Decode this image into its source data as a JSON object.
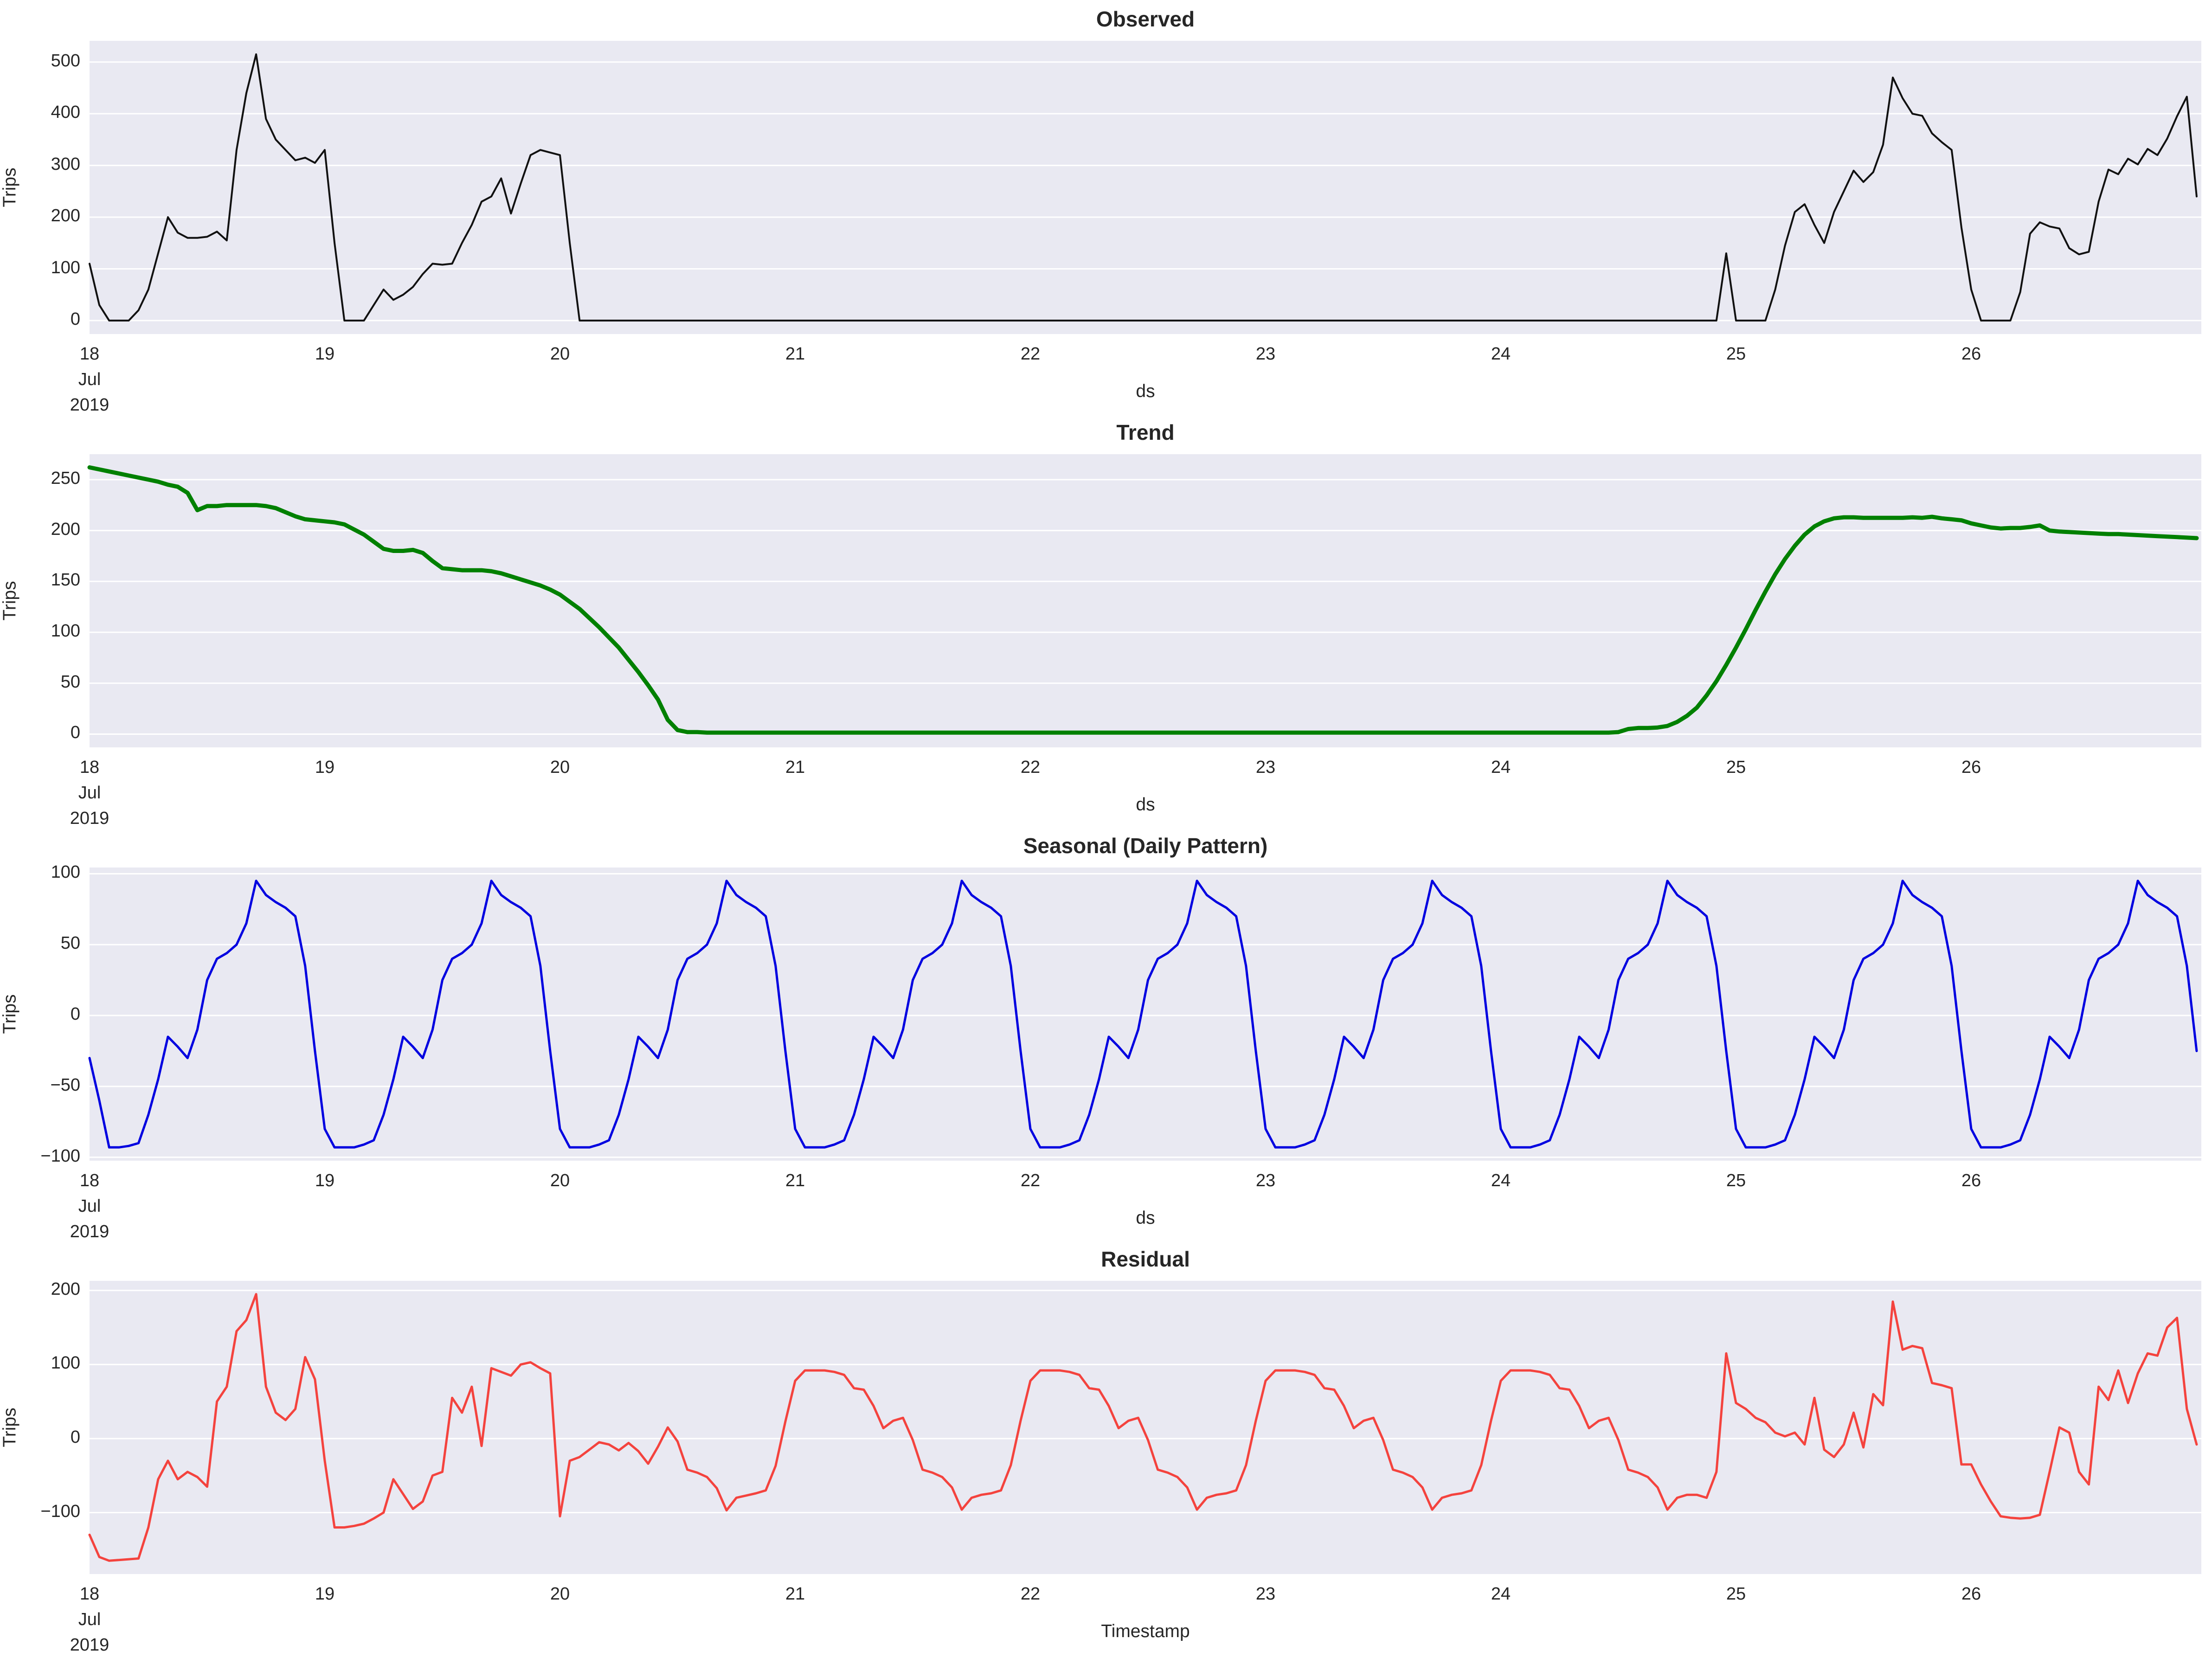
{
  "figure": {
    "background": "#ffffff",
    "axes_background": "#e9e9f2",
    "grid_color": "#ffffff",
    "text_color": "#262626",
    "x_first_tick_sublabels": [
      "Jul",
      "2019"
    ],
    "x_tick_labels": [
      "18",
      "19",
      "20",
      "21",
      "22",
      "23",
      "24",
      "25",
      "26"
    ]
  },
  "chart_data": [
    {
      "type": "line",
      "title": "Observed",
      "ylabel": "Trips",
      "xlabel": "ds",
      "color": "#111111",
      "line_width": 4,
      "x_start_day": 18,
      "x_step_days": 0.0416667,
      "x_tick_days": [
        18,
        19,
        20,
        21,
        22,
        23,
        24,
        25,
        26
      ],
      "yticks": [
        0,
        100,
        200,
        300,
        400,
        500
      ],
      "ylim": [
        -26,
        541
      ],
      "xlim_days": [
        18,
        26.98
      ],
      "grid": true,
      "legend": "none",
      "values": [
        110,
        30,
        0,
        0,
        0,
        20,
        60,
        130,
        200,
        170,
        160,
        160,
        162,
        172,
        155,
        330,
        440,
        515,
        390,
        350,
        330,
        310,
        315,
        305,
        330,
        150,
        0,
        0,
        0,
        30,
        60,
        40,
        50,
        65,
        90,
        110,
        108,
        110,
        150,
        185,
        230,
        240,
        275,
        207,
        265,
        320,
        330,
        325,
        320,
        150,
        0,
        0,
        0,
        0,
        0,
        0,
        0,
        0,
        0,
        0,
        0,
        0,
        0,
        0,
        0,
        0,
        0,
        0,
        0,
        0,
        0,
        0,
        0,
        0,
        0,
        0,
        0,
        0,
        0,
        0,
        0,
        0,
        0,
        0,
        0,
        0,
        0,
        0,
        0,
        0,
        0,
        0,
        0,
        0,
        0,
        0,
        0,
        0,
        0,
        0,
        0,
        0,
        0,
        0,
        0,
        0,
        0,
        0,
        0,
        0,
        0,
        0,
        0,
        0,
        0,
        0,
        0,
        0,
        0,
        0,
        0,
        0,
        0,
        0,
        0,
        0,
        0,
        0,
        0,
        0,
        0,
        0,
        0,
        0,
        0,
        0,
        0,
        0,
        0,
        0,
        0,
        0,
        0,
        0,
        0,
        0,
        0,
        0,
        0,
        0,
        0,
        0,
        0,
        0,
        0,
        0,
        0,
        0,
        0,
        0,
        0,
        0,
        0,
        0,
        0,
        0,
        0,
        130,
        0,
        0,
        0,
        0,
        60,
        145,
        210,
        225,
        185,
        150,
        210,
        250,
        290,
        268,
        287,
        340,
        470,
        430,
        400,
        396,
        362,
        345,
        330,
        180,
        60,
        0,
        0,
        0,
        0,
        55,
        168,
        190,
        182,
        178,
        140,
        128,
        133,
        230,
        292,
        283,
        313,
        302,
        332,
        320,
        352,
        395,
        433,
        240
      ]
    },
    {
      "type": "line",
      "title": "Trend",
      "ylabel": "Trips",
      "xlabel": "ds",
      "color": "#008000",
      "line_width": 9,
      "x_start_day": 18,
      "x_step_days": 0.0416667,
      "x_tick_days": [
        18,
        19,
        20,
        21,
        22,
        23,
        24,
        25,
        26
      ],
      "yticks": [
        0,
        50,
        100,
        150,
        200,
        250
      ],
      "ylim": [
        -13,
        275
      ],
      "xlim_days": [
        18,
        26.98
      ],
      "grid": true,
      "legend": "none",
      "values": [
        262,
        260,
        258,
        256,
        254,
        252,
        250,
        248,
        245,
        243,
        237,
        220,
        224,
        224,
        225,
        225,
        225,
        225,
        224,
        222,
        218,
        214,
        211,
        210,
        209,
        208,
        206,
        201,
        196,
        189,
        182,
        180,
        180,
        181,
        178,
        170,
        163,
        162,
        161,
        161,
        161,
        160,
        158,
        155,
        152,
        149,
        146,
        142,
        137,
        130,
        123,
        114,
        105,
        95,
        85,
        73,
        61,
        48,
        34,
        14,
        4,
        2,
        2,
        1.5,
        1.5,
        1.5,
        1.5,
        1.5,
        1.5,
        1.5,
        1.5,
        1.5,
        1.5,
        1.5,
        1.5,
        1.5,
        1.5,
        1.5,
        1.5,
        1.5,
        1.5,
        1.5,
        1.5,
        1.5,
        1.5,
        1.5,
        1.5,
        1.5,
        1.5,
        1.5,
        1.5,
        1.5,
        1.5,
        1.5,
        1.5,
        1.5,
        1.5,
        1.5,
        1.5,
        1.5,
        1.5,
        1.5,
        1.5,
        1.5,
        1.5,
        1.5,
        1.5,
        1.5,
        1.5,
        1.5,
        1.5,
        1.5,
        1.5,
        1.5,
        1.5,
        1.5,
        1.5,
        1.5,
        1.5,
        1.5,
        1.5,
        1.5,
        1.5,
        1.5,
        1.5,
        1.5,
        1.5,
        1.5,
        1.5,
        1.5,
        1.5,
        1.5,
        1.5,
        1.5,
        1.5,
        1.5,
        1.5,
        1.5,
        1.5,
        1.5,
        1.5,
        1.5,
        1.5,
        1.5,
        1.5,
        1.5,
        1.5,
        1.5,
        1.5,
        1.5,
        1.5,
        1.5,
        1.5,
        1.5,
        1.5,
        1.5,
        2,
        5,
        6,
        6,
        6.5,
        8,
        12,
        18,
        26,
        38,
        52,
        68,
        85,
        103,
        122,
        140,
        157,
        172,
        185,
        196,
        204,
        209,
        212,
        213,
        213,
        212.5,
        212.5,
        212.5,
        212.5,
        212.5,
        213,
        212.5,
        213.5,
        212,
        211,
        210,
        207,
        205,
        203,
        202,
        202.5,
        202.5,
        203.5,
        205,
        200,
        199,
        198.5,
        198,
        197.5,
        197,
        196.5,
        196.5,
        196,
        195.5,
        195,
        194.5,
        194,
        193.5,
        193,
        192.5
      ]
    },
    {
      "type": "line",
      "title": "Seasonal (Daily Pattern)",
      "ylabel": "Trips",
      "xlabel": "ds",
      "color": "#0000e0",
      "line_width": 5,
      "x_start_day": 18,
      "x_step_days": 0.0416667,
      "x_tick_days": [
        18,
        19,
        20,
        21,
        22,
        23,
        24,
        25,
        26
      ],
      "yticks": [
        -100,
        -50,
        0,
        50,
        100
      ],
      "ylim": [
        -102.4,
        104.4
      ],
      "xlim_days": [
        18,
        26.98
      ],
      "grid": true,
      "legend": "none",
      "values": [
        -30,
        -60,
        -93,
        -93,
        -92,
        -90,
        -70,
        -45,
        -15,
        -22,
        -30,
        -10,
        25,
        40,
        44,
        50,
        65,
        95,
        85,
        80,
        76,
        70,
        35,
        -25,
        -80,
        -93,
        -93,
        -93,
        -91,
        -88,
        -70,
        -45,
        -15,
        -22,
        -30,
        -10,
        25,
        40,
        44,
        50,
        65,
        95,
        85,
        80,
        76,
        70,
        35,
        -25,
        -80,
        -93,
        -93,
        -93,
        -91,
        -88,
        -70,
        -45,
        -15,
        -22,
        -30,
        -10,
        25,
        40,
        44,
        50,
        65,
        95,
        85,
        80,
        76,
        70,
        35,
        -25,
        -80,
        -93,
        -93,
        -93,
        -91,
        -88,
        -70,
        -45,
        -15,
        -22,
        -30,
        -10,
        25,
        40,
        44,
        50,
        65,
        95,
        85,
        80,
        76,
        70,
        35,
        -25,
        -80,
        -93,
        -93,
        -93,
        -91,
        -88,
        -70,
        -45,
        -15,
        -22,
        -30,
        -10,
        25,
        40,
        44,
        50,
        65,
        95,
        85,
        80,
        76,
        70,
        35,
        -25,
        -80,
        -93,
        -93,
        -93,
        -91,
        -88,
        -70,
        -45,
        -15,
        -22,
        -30,
        -10,
        25,
        40,
        44,
        50,
        65,
        95,
        85,
        80,
        76,
        70,
        35,
        -25,
        -80,
        -93,
        -93,
        -93,
        -91,
        -88,
        -70,
        -45,
        -15,
        -22,
        -30,
        -10,
        25,
        40,
        44,
        50,
        65,
        95,
        85,
        80,
        76,
        70,
        35,
        -25,
        -80,
        -93,
        -93,
        -93,
        -91,
        -88,
        -70,
        -45,
        -15,
        -22,
        -30,
        -10,
        25,
        40,
        44,
        50,
        65,
        95,
        85,
        80,
        76,
        70,
        35,
        -25,
        -80,
        -93,
        -93,
        -93,
        -91,
        -88,
        -70,
        -45,
        -15,
        -22,
        -30,
        -10,
        25,
        40,
        44,
        50,
        65,
        95,
        85,
        80,
        76,
        70,
        35,
        -25
      ]
    },
    {
      "type": "line",
      "title": "Residual",
      "ylabel": "Trips",
      "xlabel": "Timestamp",
      "color": "#f4433e",
      "line_width": 5,
      "x_start_day": 18,
      "x_step_days": 0.0416667,
      "x_tick_days": [
        18,
        19,
        20,
        21,
        22,
        23,
        24,
        25,
        26
      ],
      "yticks": [
        -100,
        0,
        100,
        200
      ],
      "ylim": [
        -183,
        213
      ],
      "xlim_days": [
        18,
        26.98
      ],
      "grid": true,
      "legend": "none",
      "values": [
        -130,
        -160,
        -165,
        -164,
        -163,
        -162,
        -120,
        -55,
        -30,
        -55,
        -45,
        -52,
        -65,
        50,
        70,
        145,
        160,
        195,
        70,
        35,
        25,
        40,
        110,
        80,
        -30,
        -120,
        -120,
        -118,
        -115,
        -108,
        -100,
        -55,
        -75,
        -95,
        -85,
        -50,
        -45,
        55,
        35,
        70,
        -10,
        95,
        90,
        85,
        100,
        103,
        95,
        88,
        -105,
        -30,
        -25,
        -15,
        -5,
        -8,
        -16,
        -6,
        -17,
        -34,
        -11,
        15,
        -4,
        -42,
        -46,
        -52,
        -67,
        -97,
        -80,
        -77,
        -74,
        -70,
        -37,
        23,
        78,
        92,
        92,
        92,
        90,
        86,
        68,
        66,
        44,
        14,
        24,
        28,
        -2,
        -42,
        -46,
        -52,
        -66,
        -96,
        -80,
        -76,
        -74,
        -70,
        -36,
        24,
        78,
        92,
        92,
        92,
        90,
        86,
        68,
        66,
        44,
        14,
        24,
        28,
        -2,
        -42,
        -46,
        -52,
        -66,
        -96,
        -80,
        -76,
        -74,
        -70,
        -36,
        24,
        78,
        92,
        92,
        92,
        90,
        86,
        68,
        66,
        44,
        14,
        24,
        28,
        -2,
        -42,
        -46,
        -52,
        -66,
        -96,
        -80,
        -76,
        -74,
        -70,
        -36,
        24,
        78,
        92,
        92,
        92,
        90,
        86,
        68,
        66,
        44,
        14,
        24,
        28,
        -2,
        -42,
        -46,
        -52,
        -66,
        -96,
        -80,
        -76,
        -76,
        -80,
        -45,
        115,
        48,
        40,
        28,
        22,
        8,
        3,
        8,
        -8,
        55,
        -15,
        -25,
        -8,
        35,
        -12,
        60,
        45,
        185,
        120,
        125,
        122,
        75,
        72,
        68,
        -35,
        -35,
        -62,
        -85,
        -105,
        -107,
        -108,
        -107,
        -103,
        -45,
        15,
        8,
        -45,
        -62,
        70,
        52,
        92,
        48,
        88,
        115,
        112,
        150,
        163,
        40,
        -8
      ]
    }
  ]
}
